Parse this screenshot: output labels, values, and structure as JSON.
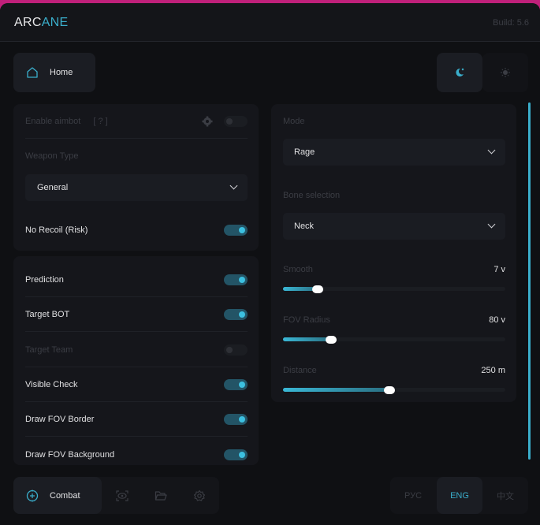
{
  "header": {
    "logo_a": "ARC",
    "logo_b": "ANE",
    "build": "Build: 5.6"
  },
  "nav": {
    "home_label": "Home",
    "theme": {
      "active": "dark",
      "icons": [
        "moon-icon",
        "sun-icon"
      ]
    }
  },
  "aimbot": {
    "enable_label": "Enable aimbot",
    "help": "[ ? ]",
    "enabled": false,
    "weapon_type_label": "Weapon Type",
    "weapon_type": "General",
    "no_recoil_label": "No Recoil (Risk)",
    "no_recoil": true
  },
  "options": [
    {
      "label": "Prediction",
      "on": true,
      "disabled": false
    },
    {
      "label": "Target BOT",
      "on": true,
      "disabled": false
    },
    {
      "label": "Target Team",
      "on": false,
      "disabled": true
    },
    {
      "label": "Visible Check",
      "on": true,
      "disabled": false
    },
    {
      "label": "Draw FOV Border",
      "on": true,
      "disabled": false
    },
    {
      "label": "Draw FOV Background",
      "on": true,
      "disabled": false
    }
  ],
  "right": {
    "mode_label": "Mode",
    "mode": "Rage",
    "bone_label": "Bone selection",
    "bone": "Neck",
    "sliders": [
      {
        "label": "Smooth",
        "value": "7 v",
        "fill_pct": 15.7
      },
      {
        "label": "FOV Radius",
        "value": "80 v",
        "fill_pct": 21.7
      },
      {
        "label": "Distance",
        "value": "250 m",
        "fill_pct": 48
      }
    ]
  },
  "bottom": {
    "active_tab": "Combat",
    "tabs": [
      "crosshair-icon",
      "eye-icon",
      "folder-icon",
      "gear-icon"
    ],
    "languages": [
      "РУС",
      "ENG",
      "中文"
    ],
    "active_language": "ENG"
  },
  "colors": {
    "accent": "#3aaecb",
    "background": "#0f1013",
    "panel": "#15161b"
  }
}
